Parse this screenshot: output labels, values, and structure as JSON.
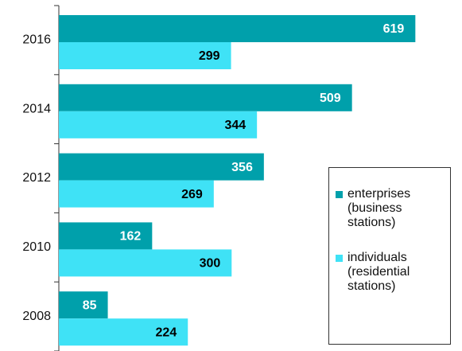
{
  "chart_data": {
    "type": "bar",
    "orientation": "horizontal",
    "categories": [
      "2016",
      "2014",
      "2012",
      "2010",
      "2008"
    ],
    "series": [
      {
        "name": "enterprises (business stations)",
        "color": "#00a0ab",
        "values": [
          619,
          509,
          356,
          162,
          85
        ]
      },
      {
        "name": "individuals (residential stations)",
        "color": "#3fe2f6",
        "values": [
          299,
          344,
          269,
          300,
          224
        ]
      }
    ],
    "xlim": [
      0,
      700
    ]
  }
}
